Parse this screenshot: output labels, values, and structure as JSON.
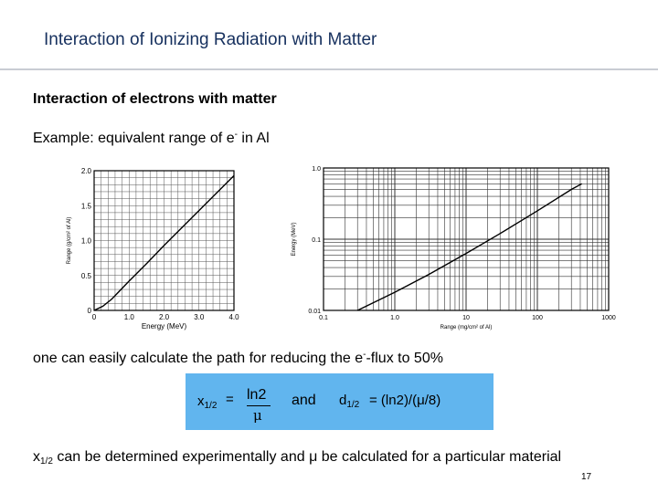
{
  "slide": {
    "title": "Interaction of Ionizing Radiation with Matter",
    "subheading": "Interaction of electrons with matter",
    "example_text": "Example: equivalent range of e",
    "example_sup": "-",
    "example_tail": " in Al",
    "path_text": "one can easily calculate the path for reducing the e",
    "path_sup": "-",
    "path_tail": "-flux to 50%",
    "formula": {
      "x_half": "x",
      "x_half_sub": "1/2",
      "equals": "=",
      "numerator": "ln2",
      "denominator": "μ",
      "and": "and",
      "d_half": "d",
      "d_half_sub": "1/2",
      "d_rhs": "= (ln2)/(μ/8)"
    },
    "bottom_x": "x",
    "bottom_sub": "1/2",
    "bottom_tail": " can be determined experimentally and μ be calculated for a particular material",
    "page_number": "17"
  },
  "chart_data": [
    {
      "type": "line",
      "xlabel": "Energy (MeV)",
      "ylabel": "Range (g/cm² of Al)",
      "xlim": [
        0,
        4.0
      ],
      "ylim": [
        0,
        2.0
      ],
      "x_ticks": [
        "0",
        "1.0",
        "2.0",
        "3.0",
        "4.0"
      ],
      "y_ticks": [
        "0",
        "0.5",
        "1.0",
        "1.5",
        "2.0"
      ],
      "grid": true,
      "x": [
        0,
        0.25,
        0.5,
        1.0,
        1.5,
        2.0,
        2.5,
        3.0,
        3.5,
        4.0
      ],
      "y": [
        0,
        0.06,
        0.16,
        0.42,
        0.67,
        0.93,
        1.18,
        1.43,
        1.68,
        1.93
      ]
    },
    {
      "type": "line",
      "xlabel": "Range (mg/cm² of Al)",
      "ylabel": "Energy (MeV)",
      "x_scale": "log",
      "y_scale": "log",
      "xlim": [
        0.1,
        1000
      ],
      "ylim": [
        0.01,
        1.0
      ],
      "x_ticks": [
        "0.1",
        "1.0",
        "10",
        "100",
        "1000"
      ],
      "y_ticks": [
        "0.01",
        "0.1",
        "1.0"
      ],
      "grid": true,
      "x": [
        0.3,
        1,
        3,
        10,
        30,
        100,
        300,
        420
      ],
      "y": [
        0.01,
        0.018,
        0.032,
        0.063,
        0.12,
        0.25,
        0.5,
        0.6
      ]
    }
  ]
}
